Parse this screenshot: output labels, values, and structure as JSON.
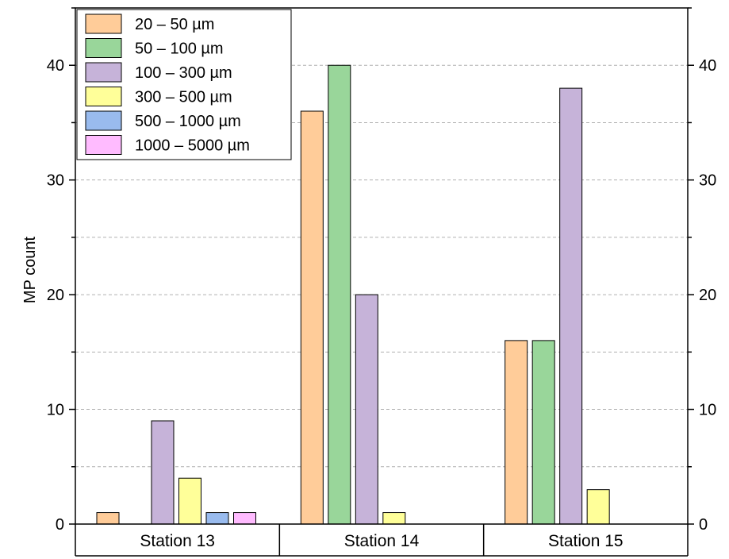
{
  "chart_data": {
    "type": "bar",
    "categories": [
      "Station 13",
      "Station 14",
      "Station 15"
    ],
    "series": [
      {
        "name": "20 – 50 µm",
        "color": "#FFCC99",
        "values": [
          1,
          36,
          16
        ]
      },
      {
        "name": "50 – 100 µm",
        "color": "#99D69A",
        "values": [
          0,
          40,
          16
        ]
      },
      {
        "name": "100 – 300 µm",
        "color": "#C6B3D9",
        "values": [
          9,
          20,
          38
        ]
      },
      {
        "name": "300 – 500 µm",
        "color": "#FFFF99",
        "values": [
          4,
          1,
          3
        ]
      },
      {
        "name": "500 – 1000 µm",
        "color": "#99BBEE",
        "values": [
          1,
          0,
          0
        ]
      },
      {
        "name": "1000 – 5000 µm",
        "color": "#FFBBFF",
        "values": [
          1,
          0,
          0
        ]
      }
    ],
    "ylabel": "MP count",
    "ylim": [
      0,
      45
    ],
    "yticks": [
      "0",
      "10",
      "20",
      "30",
      "40"
    ],
    "grid": true,
    "secondary_y_axis": true,
    "legend_position": "top-left"
  }
}
